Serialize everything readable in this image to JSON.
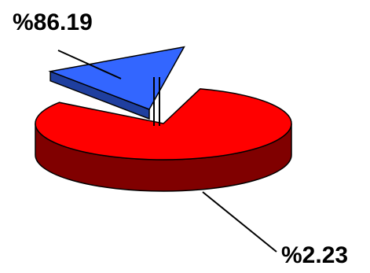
{
  "chart_data": {
    "type": "pie",
    "style": "3d-exploded",
    "title": "",
    "slices": [
      {
        "value": 86.19,
        "label": "%86.19",
        "color": "#3366FF",
        "side_color": "#1F3F9F",
        "exploded": true
      },
      {
        "value": 2.23,
        "label": "%2.23",
        "color": "#FF0000",
        "side_color": "#800000",
        "exploded": false
      }
    ],
    "legend": "none",
    "grid": false
  }
}
